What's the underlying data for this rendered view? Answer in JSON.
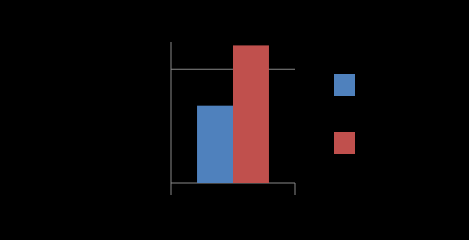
{
  "chart_data": {
    "type": "bar",
    "categories": [
      null
    ],
    "series": [
      {
        "color": "#4f81bd",
        "values": [
          0.68
        ]
      },
      {
        "color": "#c0504d",
        "values": [
          1.21
        ]
      }
    ],
    "ylim": [
      0,
      1.24
    ],
    "yticks": [
      0,
      1
    ],
    "grid": true
  }
}
